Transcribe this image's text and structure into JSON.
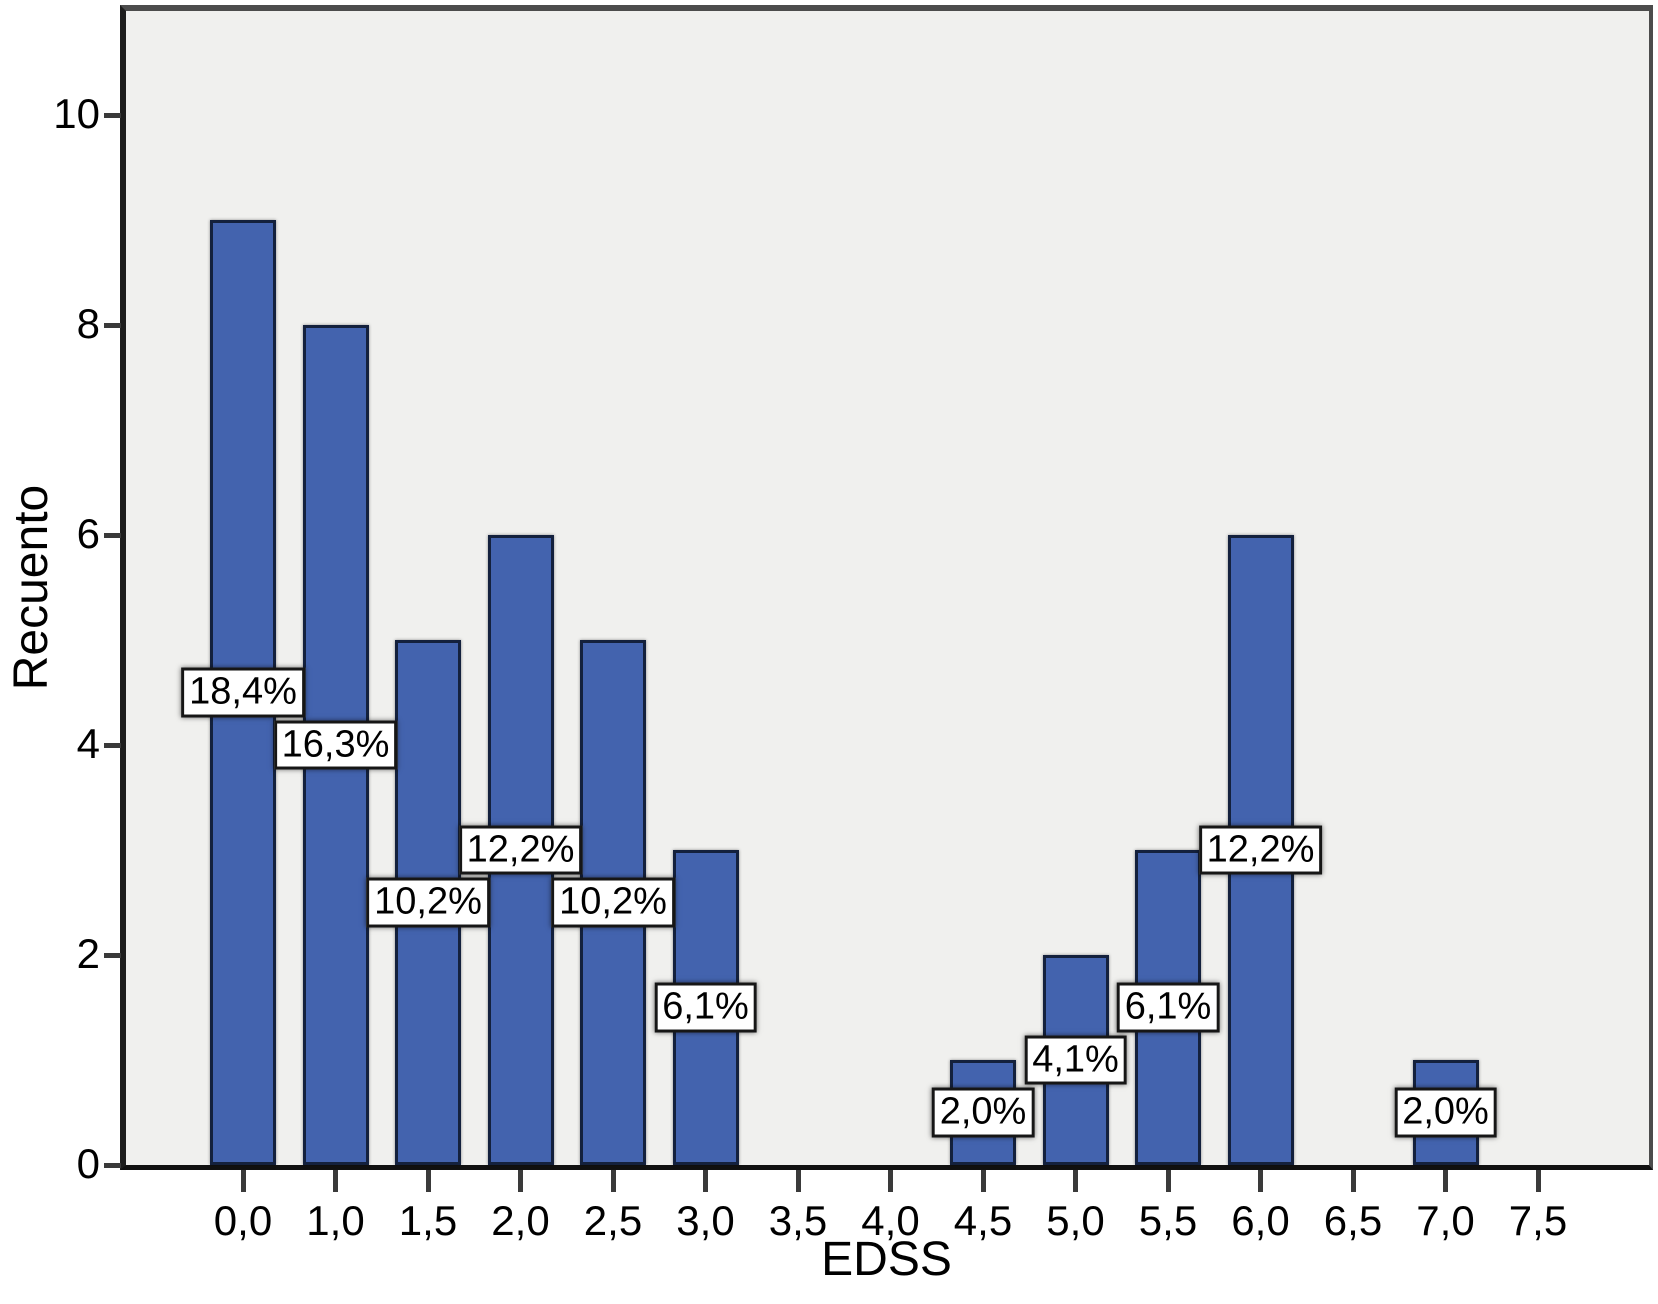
{
  "chart_data": {
    "type": "bar",
    "title": "",
    "xlabel": "EDSS",
    "ylabel": "Recuento",
    "categories": [
      "0,0",
      "1,0",
      "1,5",
      "2,0",
      "2,5",
      "3,0",
      "3,5",
      "4,0",
      "4,5",
      "5,0",
      "5,5",
      "6,0",
      "6,5",
      "7,0",
      "7,5"
    ],
    "values": [
      9,
      8,
      5,
      6,
      5,
      3,
      0,
      0,
      1,
      2,
      3,
      6,
      0,
      1,
      0
    ],
    "bar_labels": [
      "18,4%",
      "16,3%",
      "10,2%",
      "12,2%",
      "10,2%",
      "6,1%",
      null,
      null,
      "2,0%",
      "4,1%",
      "6,1%",
      "12,2%",
      null,
      "2,0%",
      null
    ],
    "y_ticks": [
      0,
      2,
      4,
      6,
      8,
      10
    ],
    "ylim": [
      0,
      11
    ],
    "grid": false,
    "legend": "none",
    "decimal_separator": ",",
    "colors": {
      "bar_fill": "#4363AE",
      "bar_border": "#14213D",
      "plot_bg": "#F0F0EE",
      "page_bg": "#FFFFFF",
      "frame": "#4C4C4C",
      "axis_line": "#111111",
      "tick": "#3A3A3A",
      "label_box_bg": "#FFFFFF",
      "label_box_border": "#161616",
      "text": "#000000"
    }
  }
}
